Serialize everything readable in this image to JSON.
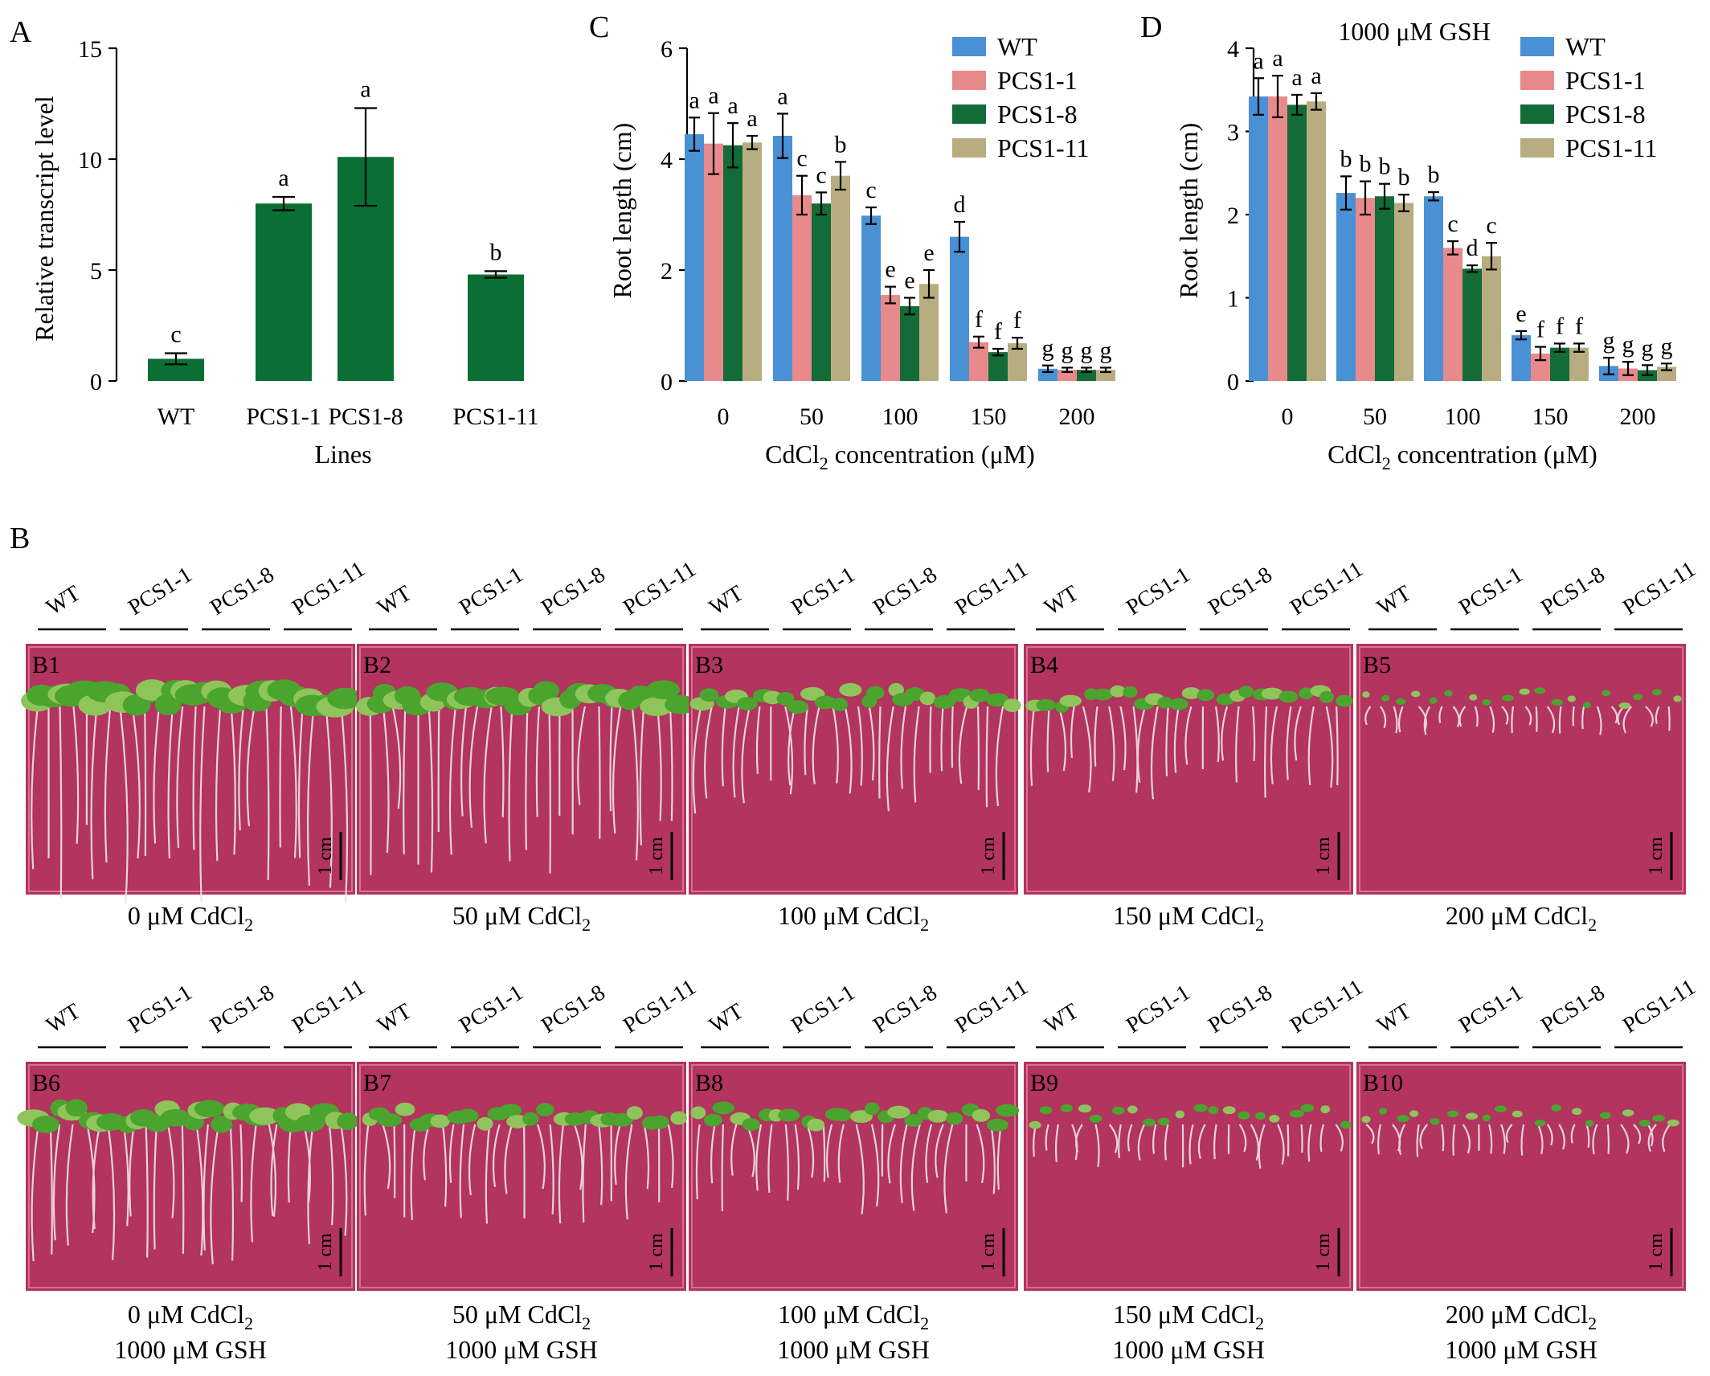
{
  "colors": {
    "green": "#0b6e35",
    "WT": "#4a90d4",
    "PCS1-1": "#e8898c",
    "PCS1-8": "#136b38",
    "PCS1-11": "#b8ad80",
    "plate": "#b2345f",
    "root": "#ece4ec",
    "leaf": "#4aa42e",
    "leaf_light": "#8ec45a"
  },
  "chart_data": [
    {
      "panel": "A",
      "type": "bar",
      "title": "",
      "xlabel": "Lines",
      "ylabel": "Relative transcript level",
      "ylim": [
        0,
        15
      ],
      "yticks": [
        "0",
        "5",
        "10",
        "15"
      ],
      "categories": [
        "WT",
        "PCS1-1",
        "PCS1-8",
        "PCS1-11"
      ],
      "values": [
        1.0,
        8.0,
        10.1,
        4.8
      ],
      "errors": [
        0.25,
        0.3,
        2.2,
        0.15
      ],
      "letters": [
        "c",
        "a",
        "a",
        "b"
      ]
    },
    {
      "panel": "C",
      "type": "bar",
      "title": "",
      "xlabel": "CdCl",
      "xlabel_sub": "2",
      "xlabel_rest": " concentration (μM)",
      "ylabel": "Root length (cm)",
      "ylim": [
        0,
        6
      ],
      "yticks": [
        "0",
        "2",
        "4",
        "6"
      ],
      "categories": [
        "0",
        "50",
        "100",
        "150",
        "200"
      ],
      "legend": "top-right",
      "series": [
        {
          "name": "WT",
          "values": [
            4.45,
            4.42,
            2.98,
            2.6,
            0.22
          ],
          "errors": [
            0.3,
            0.4,
            0.15,
            0.27,
            0.06
          ],
          "letters": [
            "a",
            "a",
            "c",
            "d",
            "g"
          ]
        },
        {
          "name": "PCS1-1",
          "values": [
            4.28,
            3.35,
            1.55,
            0.7,
            0.2
          ],
          "errors": [
            0.55,
            0.35,
            0.15,
            0.1,
            0.04
          ],
          "letters": [
            "a",
            "c",
            "e",
            "f",
            "g"
          ]
        },
        {
          "name": "PCS1-8",
          "values": [
            4.25,
            3.2,
            1.35,
            0.52,
            0.2
          ],
          "errors": [
            0.4,
            0.2,
            0.15,
            0.06,
            0.04
          ],
          "letters": [
            "a",
            "c",
            "e",
            "f",
            "g"
          ]
        },
        {
          "name": "PCS1-11",
          "values": [
            4.3,
            3.7,
            1.75,
            0.68,
            0.2
          ],
          "errors": [
            0.12,
            0.25,
            0.25,
            0.1,
            0.04
          ],
          "letters": [
            "a",
            "b",
            "e",
            "f",
            "g"
          ]
        }
      ]
    },
    {
      "panel": "D",
      "type": "bar",
      "title": "1000 μM GSH",
      "xlabel": "CdCl",
      "xlabel_sub": "2",
      "xlabel_rest": " concentration (μM)",
      "ylabel": "Root length (cm)",
      "ylim": [
        0,
        4
      ],
      "yticks": [
        "0",
        "1",
        "2",
        "3",
        "4"
      ],
      "categories": [
        "0",
        "50",
        "100",
        "150",
        "200"
      ],
      "legend": "top-right",
      "series": [
        {
          "name": "WT",
          "values": [
            3.42,
            2.26,
            2.22,
            0.55,
            0.18
          ],
          "errors": [
            0.22,
            0.2,
            0.05,
            0.05,
            0.1
          ],
          "letters": [
            "a",
            "b",
            "b",
            "e",
            "g"
          ]
        },
        {
          "name": "PCS1-1",
          "values": [
            3.42,
            2.2,
            1.6,
            0.33,
            0.15
          ],
          "errors": [
            0.25,
            0.2,
            0.08,
            0.08,
            0.08
          ],
          "letters": [
            "a",
            "b",
            "c",
            "f",
            "g"
          ]
        },
        {
          "name": "PCS1-8",
          "values": [
            3.32,
            2.22,
            1.35,
            0.4,
            0.13
          ],
          "errors": [
            0.12,
            0.15,
            0.04,
            0.05,
            0.06
          ],
          "letters": [
            "a",
            "b",
            "d",
            "f",
            "g"
          ]
        },
        {
          "name": "PCS1-11",
          "values": [
            3.36,
            2.14,
            1.5,
            0.4,
            0.17
          ],
          "errors": [
            0.1,
            0.1,
            0.16,
            0.05,
            0.04
          ],
          "letters": [
            "a",
            "b",
            "c",
            "f",
            "g"
          ]
        }
      ]
    }
  ],
  "panels": {
    "A": "A",
    "B": "B",
    "C": "C",
    "D": "D"
  },
  "photo_lines": [
    "WT",
    "PCS1-1",
    "PCS1-8",
    "PCS1-11"
  ],
  "scale_label": "1 cm",
  "photos": [
    {
      "tag": "B1",
      "cd": "0",
      "gsh": "",
      "growth": 1.0
    },
    {
      "tag": "B2",
      "cd": "50",
      "gsh": "",
      "growth": 0.85
    },
    {
      "tag": "B3",
      "cd": "100",
      "gsh": "",
      "growth": 0.5
    },
    {
      "tag": "B4",
      "cd": "150",
      "gsh": "",
      "growth": 0.4
    },
    {
      "tag": "B5",
      "cd": "200",
      "gsh": "",
      "growth": 0.05
    },
    {
      "tag": "B6",
      "cd": "0",
      "gsh": "1000 μM GSH",
      "growth": 0.75
    },
    {
      "tag": "B7",
      "cd": "50",
      "gsh": "1000 μM GSH",
      "growth": 0.5
    },
    {
      "tag": "B8",
      "cd": "100",
      "gsh": "1000 μM GSH",
      "growth": 0.45
    },
    {
      "tag": "B9",
      "cd": "150",
      "gsh": "1000 μM GSH",
      "growth": 0.15
    },
    {
      "tag": "B10",
      "cd": "200",
      "gsh": "1000 μM GSH",
      "growth": 0.08
    }
  ],
  "caption_unit": "μM CdCl",
  "caption_sub": "2"
}
